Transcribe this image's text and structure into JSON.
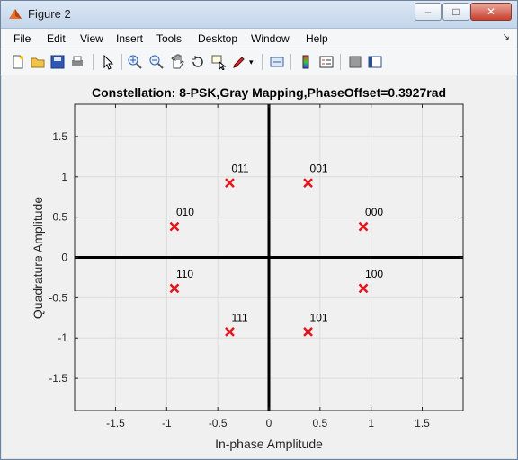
{
  "window": {
    "title": "Figure 2",
    "icon": "matlab-figure-icon"
  },
  "menu": [
    "File",
    "Edit",
    "View",
    "Insert",
    "Tools",
    "Desktop",
    "Window",
    "Help"
  ],
  "toolbar": [
    "new-figure-icon",
    "open-icon",
    "save-icon",
    "print-icon",
    "pointer-icon",
    "zoom-in-icon",
    "zoom-out-icon",
    "pan-icon",
    "rotate-icon",
    "data-cursor-icon",
    "brush-icon",
    "link-icon",
    "colorbar-icon",
    "legend-icon",
    "hide-plot-tools-icon",
    "show-plot-tools-icon"
  ],
  "chart_data": {
    "type": "scatter",
    "title": "Constellation: 8-PSK,Gray Mapping,PhaseOffset=0.3927rad",
    "xlabel": "In-phase Amplitude",
    "ylabel": "Quadrature Amplitude",
    "xlim": [
      -1.9,
      1.9
    ],
    "ylim": [
      -1.9,
      1.9
    ],
    "xticks": [
      -1.5,
      -1,
      -0.5,
      0,
      0.5,
      1,
      1.5
    ],
    "yticks": [
      -1.5,
      -1,
      -0.5,
      0,
      0.5,
      1,
      1.5
    ],
    "xtick_labels": [
      "-1.5",
      "-1",
      "-0.5",
      "0",
      "0.5",
      "1",
      "1.5"
    ],
    "ytick_labels": [
      "-1.5",
      "-1",
      "-0.5",
      "0",
      "0.5",
      "1",
      "1.5"
    ],
    "grid": true,
    "marker": "x",
    "marker_color": "#e8141a",
    "points": [
      {
        "label": "000",
        "x": 0.924,
        "y": 0.383
      },
      {
        "label": "001",
        "x": 0.383,
        "y": 0.924
      },
      {
        "label": "011",
        "x": -0.383,
        "y": 0.924
      },
      {
        "label": "010",
        "x": -0.924,
        "y": 0.383
      },
      {
        "label": "110",
        "x": -0.924,
        "y": -0.383
      },
      {
        "label": "111",
        "x": -0.383,
        "y": -0.924
      },
      {
        "label": "101",
        "x": 0.383,
        "y": -0.924
      },
      {
        "label": "100",
        "x": 0.924,
        "y": -0.383
      }
    ]
  }
}
